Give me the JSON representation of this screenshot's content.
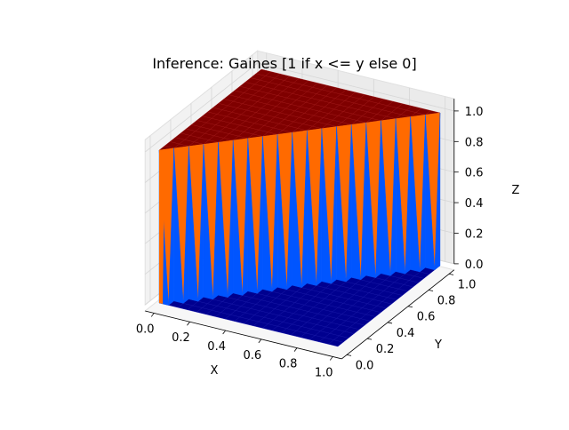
{
  "chart_data": {
    "type": "surface3d",
    "title": "Inference: Gaines [1 if x <= y else 0]",
    "xlabel": "X",
    "ylabel": "Y",
    "zlabel": "Z",
    "xlim": [
      0,
      1
    ],
    "ylim": [
      0,
      1
    ],
    "zlim": [
      0,
      1
    ],
    "x_ticks": [
      "0.0",
      "0.2",
      "0.4",
      "0.6",
      "0.8",
      "1.0"
    ],
    "y_ticks": [
      "0.0",
      "0.2",
      "0.4",
      "0.6",
      "0.8",
      "1.0"
    ],
    "z_ticks": [
      "0.0",
      "0.2",
      "0.4",
      "0.6",
      "0.8",
      "1.0"
    ],
    "grid": true,
    "colormap": "jet",
    "function": "z = 1 if x <= y else 0",
    "colors": {
      "high": "#7f0000",
      "low": "#00008f",
      "wall_light": "#ff6a00",
      "wall_blue": "#0055ff"
    }
  }
}
